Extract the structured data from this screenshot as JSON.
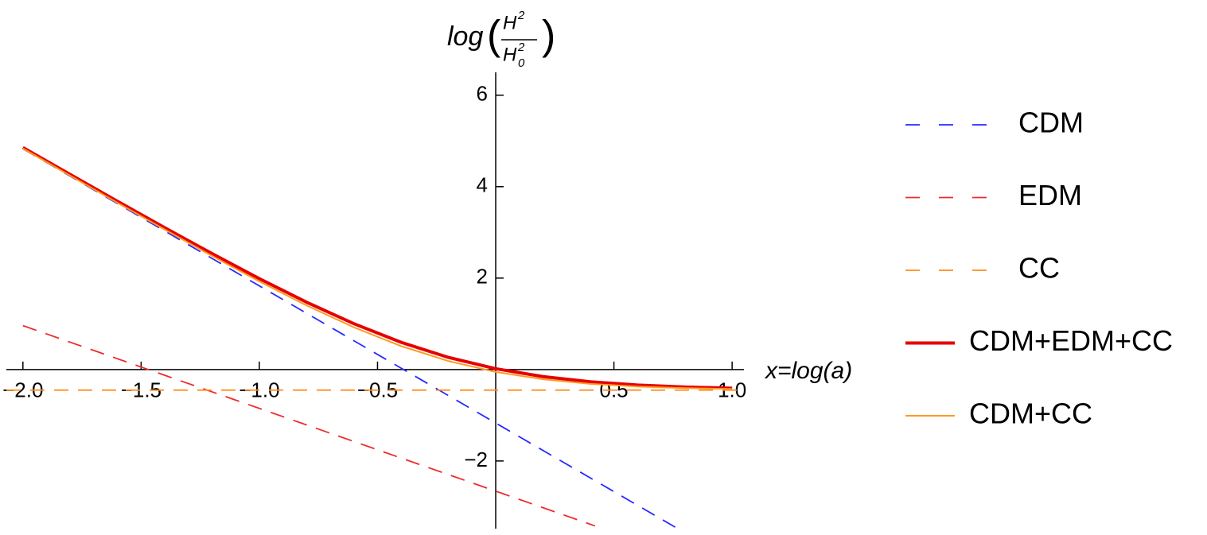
{
  "chart_data": {
    "type": "line",
    "x_label": "x=log(a)",
    "y_label": {
      "func": "log",
      "num": "H",
      "num_sup": "2",
      "den": "H",
      "den_sub": "0",
      "den_sup": "2"
    },
    "xlim": [
      -2.07,
      1.05
    ],
    "ylim": [
      -3.48,
      6.5
    ],
    "xticks": [
      {
        "value": -2,
        "label": "−2.0"
      },
      {
        "value": -1.5,
        "label": "−1.5"
      },
      {
        "value": -1,
        "label": "−1.0"
      },
      {
        "value": -0.5,
        "label": "−0.5"
      },
      0.5,
      {
        "value": 1,
        "label": "1.0"
      }
    ],
    "yticks": [
      {
        "value": -2,
        "label": "−2"
      },
      2,
      4,
      6
    ],
    "legend": "right",
    "series": [
      {
        "name": "CDM",
        "color": "#2a2aff",
        "dash": true,
        "x": [
          -2,
          0.76
        ],
        "values": [
          4.83,
          -3.45
        ]
      },
      {
        "name": "EDM",
        "color": "#f02b2b",
        "dash": true,
        "x": [
          -2,
          0.42
        ],
        "values": [
          0.96,
          -3.42
        ]
      },
      {
        "name": "CC",
        "color": "#ff8c1a",
        "dash": true,
        "x": [
          -2.07,
          1.05
        ],
        "values": [
          -0.45,
          -0.45
        ]
      },
      {
        "name": "CDM+EDM+CC",
        "color": "#e60000",
        "dash": false,
        "width": 4,
        "x": [
          -2,
          -1.8,
          -1.6,
          -1.4,
          -1.2,
          -1.0,
          -0.8,
          -0.6,
          -0.4,
          -0.2,
          0,
          0.2,
          0.4,
          0.6,
          0.8,
          1.0
        ],
        "values": [
          4.855,
          4.265,
          3.679,
          3.101,
          2.535,
          1.988,
          1.472,
          1.002,
          0.595,
          0.265,
          0.018,
          -0.155,
          -0.268,
          -0.339,
          -0.382,
          -0.409
        ]
      },
      {
        "name": "CDM+CC",
        "color": "#ff9a1f",
        "dash": false,
        "width": 2,
        "x": [
          -2,
          -1.8,
          -1.6,
          -1.4,
          -1.2,
          -1.0,
          -0.8,
          -0.6,
          -0.4,
          -0.2,
          0,
          0.2,
          0.4,
          0.6,
          0.8,
          1.0
        ],
        "values": [
          4.835,
          4.24,
          3.647,
          3.061,
          2.485,
          1.928,
          1.401,
          0.923,
          0.512,
          0.185,
          -0.053,
          -0.213,
          -0.313,
          -0.373,
          -0.407,
          -0.426
        ]
      }
    ]
  }
}
